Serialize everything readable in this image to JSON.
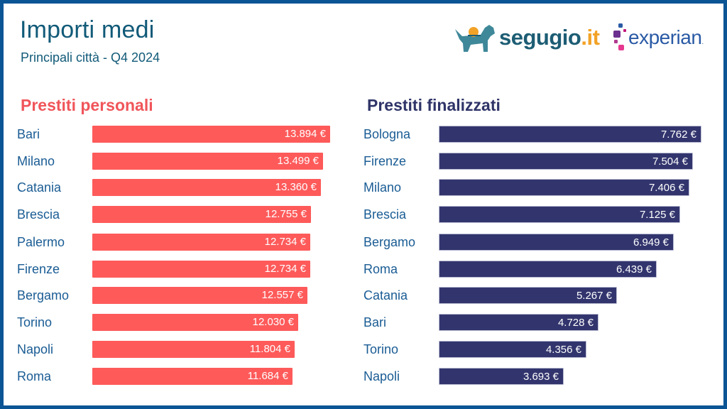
{
  "header": {
    "title": "Importi medi",
    "subtitle": "Principali città - Q4 2024"
  },
  "logos": {
    "segugio": {
      "main": "segugio",
      "suffix": ".it"
    },
    "experian": {
      "main": "experian",
      "suffix": "."
    }
  },
  "colors": {
    "border": "#0b5595",
    "title": "#115a78",
    "personali": "#fe5a5a",
    "finalizzati": "#32356d",
    "label": "#1a5c94"
  },
  "chart_data": [
    {
      "type": "bar",
      "orientation": "horizontal",
      "title": "Prestiti personali",
      "unit": "€",
      "categories": [
        "Bari",
        "Milano",
        "Catania",
        "Brescia",
        "Palermo",
        "Firenze",
        "Bergamo",
        "Torino",
        "Napoli",
        "Roma"
      ],
      "values": [
        13894,
        13499,
        13360,
        12755,
        12734,
        12734,
        12557,
        12030,
        11804,
        11684
      ],
      "labels": [
        "13.894 €",
        "13.499 €",
        "13.360 €",
        "12.755 €",
        "12.734 €",
        "12.734 €",
        "12.557 €",
        "12.030 €",
        "11.804 €",
        "11.684 €"
      ],
      "xlim": [
        0,
        13894
      ],
      "grid": false
    },
    {
      "type": "bar",
      "orientation": "horizontal",
      "title": "Prestiti finalizzati",
      "unit": "€",
      "categories": [
        "Bologna",
        "Firenze",
        "Milano",
        "Brescia",
        "Bergamo",
        "Roma",
        "Catania",
        "Bari",
        "Torino",
        "Napoli"
      ],
      "values": [
        7762,
        7504,
        7406,
        7125,
        6949,
        6439,
        5267,
        4728,
        4356,
        3693
      ],
      "labels": [
        "7.762 €",
        "7.504 €",
        "7.406 €",
        "7.125 €",
        "6.949 €",
        "6.439 €",
        "5.267 €",
        "4.728 €",
        "4.356 €",
        "3.693 €"
      ],
      "xlim": [
        0,
        7762
      ],
      "grid": false
    }
  ]
}
